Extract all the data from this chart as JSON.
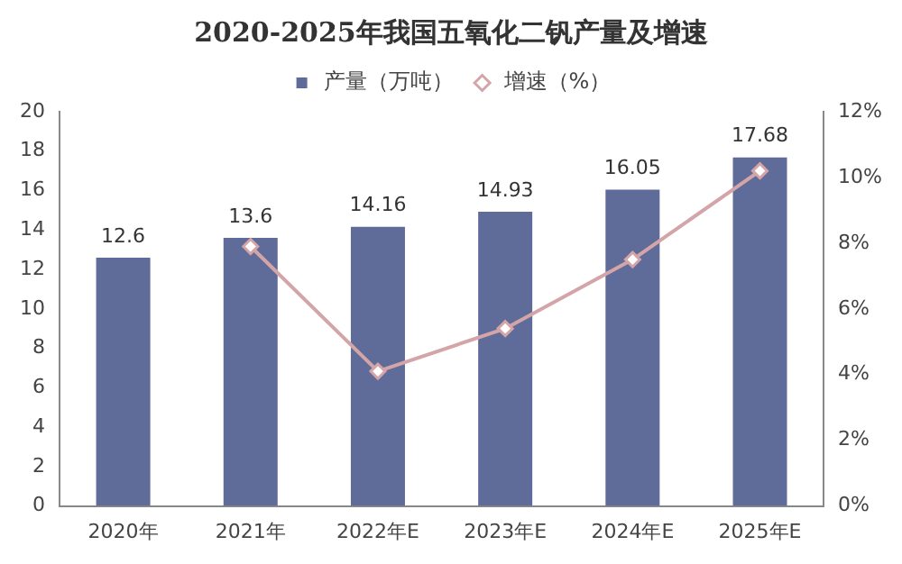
{
  "chart_data": {
    "type": "bar",
    "title": "2020-2025年我国五氧化二钒产量及增速",
    "categories": [
      "2020年",
      "2021年",
      "2022年E",
      "2023年E",
      "2024年E",
      "2025年E"
    ],
    "series": [
      {
        "name": "产量（万吨）",
        "color": "#5f6b99",
        "values": [
          12.6,
          13.6,
          14.16,
          14.93,
          16.05,
          17.68
        ],
        "value_labels": [
          "12.6",
          "13.6",
          "14.16",
          "14.93",
          "16.05",
          "17.68"
        ]
      },
      {
        "name": "增速（%）",
        "type": "line",
        "axis": "y2",
        "color": "#d4a5a8",
        "values": [
          null,
          7.9,
          4.1,
          5.4,
          7.5,
          10.2
        ]
      }
    ],
    "ylim": [
      0,
      20
    ],
    "yticks": [
      0,
      2,
      4,
      6,
      8,
      10,
      12,
      14,
      16,
      18,
      20
    ],
    "y2lim": [
      0,
      12
    ],
    "y2ticks": [
      {
        "value": 0,
        "label": "0%"
      },
      {
        "value": 2,
        "label": "2%"
      },
      {
        "value": 4,
        "label": "4%"
      },
      {
        "value": 6,
        "label": "6%"
      },
      {
        "value": 8,
        "label": "8%"
      },
      {
        "value": 10,
        "label": "10%"
      },
      {
        "value": 12,
        "label": "12%"
      }
    ],
    "grid": false,
    "legend": "top",
    "marker": "diamond",
    "line_style": "solid"
  }
}
